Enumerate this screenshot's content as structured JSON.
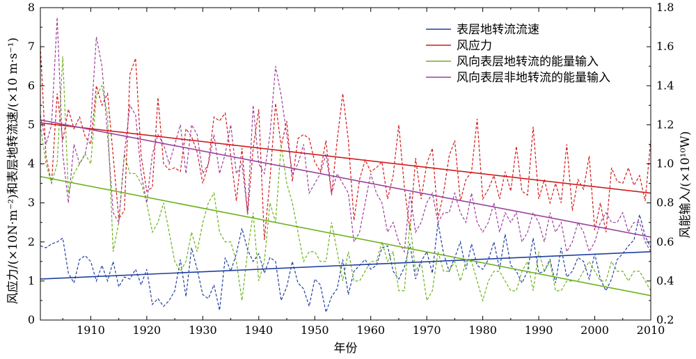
{
  "chart_data": {
    "type": "line",
    "xlabel": "年份",
    "ylabel_left": "风应力/(×10N·m⁻²)和表层地转流速/(×10 m·s⁻¹)",
    "ylabel_right": "风能输入/(×10¹⁰W)",
    "xlim": [
      1901,
      2010
    ],
    "ylim_left": [
      0,
      8
    ],
    "ylim_right": [
      0.2,
      1.8
    ],
    "xticks": [
      "1910",
      "1920",
      "1930",
      "1940",
      "1950",
      "1960",
      "1970",
      "1980",
      "1990",
      "2000",
      "2010"
    ],
    "yticks_left": [
      "0",
      "1",
      "2",
      "3",
      "4",
      "5",
      "6",
      "7",
      "8"
    ],
    "yticks_right": [
      "0.2",
      "0.4",
      "0.6",
      "0.8",
      "1.0",
      "1.2",
      "1.4",
      "1.6",
      "1.8"
    ],
    "grid": false,
    "legend_position": "top-right",
    "series": [
      {
        "name": "表层地转流流速",
        "color": "#1f3f9e",
        "axis": "left",
        "x_start": 1901,
        "values": [
          1.9,
          1.85,
          1.95,
          2.0,
          2.1,
          1.2,
          0.95,
          1.55,
          1.65,
          1.5,
          1.0,
          1.4,
          1.0,
          1.5,
          0.85,
          1.1,
          1.05,
          1.3,
          0.9,
          1.3,
          0.4,
          0.55,
          0.35,
          0.5,
          0.75,
          1.55,
          0.6,
          1.85,
          1.3,
          0.65,
          0.55,
          0.9,
          0.25,
          1.6,
          1.25,
          1.7,
          2.35,
          1.8,
          1.5,
          1.7,
          1.2,
          1.6,
          1.5,
          0.5,
          0.85,
          1.5,
          0.95,
          0.8,
          0.35,
          1.05,
          0.9,
          0.2,
          0.6,
          0.8,
          1.55,
          0.65,
          1.25,
          1.4,
          1.55,
          1.3,
          1.4,
          1.85,
          1.9,
          1.25,
          1.05,
          1.35,
          1.95,
          1.05,
          1.5,
          1.75,
          1.2,
          2.5,
          1.7,
          1.25,
          1.6,
          2.0,
          1.3,
          1.95,
          1.4,
          1.3,
          1.55,
          2.0,
          1.3,
          2.2,
          1.4,
          1.25,
          0.95,
          1.25,
          2.1,
          1.2,
          1.25,
          1.55,
          0.95,
          1.85,
          1.1,
          1.25,
          1.6,
          1.5,
          1.05,
          1.7,
          1.05,
          0.75,
          1.05,
          1.55,
          1.7,
          1.9,
          2.05,
          2.7,
          2.15,
          1.85
        ],
        "trend": [
          1.05,
          1.75
        ]
      },
      {
        "name": "风应力",
        "color": "#d11a1a",
        "axis": "left",
        "x_start": 1901,
        "values": [
          7.0,
          4.2,
          3.5,
          5.8,
          4.6,
          5.4,
          4.9,
          5.2,
          4.7,
          4.5,
          6.0,
          5.5,
          5.8,
          4.2,
          2.6,
          2.8,
          6.3,
          6.7,
          4.2,
          3.3,
          3.4,
          5.7,
          4.0,
          3.85,
          3.9,
          3.8,
          4.9,
          4.7,
          4.3,
          3.5,
          4.0,
          5.2,
          5.1,
          5.3,
          4.2,
          3.05,
          4.4,
          2.7,
          4.4,
          5.4,
          2.05,
          3.6,
          5.55,
          4.45,
          5.1,
          3.55,
          4.65,
          4.75,
          4.65,
          4.05,
          3.8,
          4.6,
          3.2,
          4.6,
          5.8,
          4.6,
          2.55,
          3.6,
          4.1,
          3.8,
          3.9,
          4.05,
          3.1,
          3.7,
          5.0,
          3.4,
          2.3,
          4.15,
          3.1,
          4.0,
          4.4,
          2.6,
          3.25,
          4.2,
          4.6,
          3.05,
          3.6,
          3.8,
          5.15,
          3.1,
          3.35,
          3.7,
          3.1,
          3.8,
          3.3,
          4.45,
          3.3,
          3.2,
          4.95,
          3.1,
          3.6,
          3.0,
          3.5,
          3.0,
          4.5,
          2.8,
          3.6,
          3.35,
          4.2,
          2.3,
          3.0,
          2.25,
          3.9,
          3.55,
          3.5,
          3.9,
          3.45,
          3.7,
          3.05,
          4.6
        ],
        "trend": [
          5.05,
          3.25
        ]
      },
      {
        "name": "风向表层地转流的能量输入",
        "color": "#6bb21c",
        "axis": "right",
        "x_start": 1901,
        "values": [
          1.2,
          1.0,
          0.9,
          1.0,
          1.55,
          0.85,
          0.95,
          1.0,
          1.05,
          1.0,
          1.35,
          1.4,
          1.25,
          0.55,
          0.7,
          1.05,
          0.95,
          0.95,
          0.9,
          0.8,
          0.65,
          0.7,
          0.8,
          0.65,
          0.5,
          0.45,
          0.5,
          0.65,
          0.55,
          0.7,
          0.8,
          0.85,
          0.65,
          0.6,
          0.6,
          0.5,
          0.3,
          0.55,
          0.75,
          0.4,
          0.5,
          0.8,
          0.7,
          1.1,
          0.9,
          0.8,
          0.65,
          0.5,
          0.55,
          0.55,
          0.5,
          0.5,
          0.7,
          0.55,
          0.4,
          0.55,
          0.4,
          0.4,
          0.45,
          0.5,
          0.5,
          0.6,
          0.5,
          0.55,
          0.35,
          0.35,
          0.7,
          0.45,
          0.5,
          0.3,
          0.35,
          0.55,
          0.45,
          0.45,
          0.5,
          0.4,
          0.5,
          0.5,
          0.4,
          0.3,
          0.4,
          0.45,
          0.45,
          0.4,
          0.35,
          0.35,
          0.45,
          0.5,
          0.35,
          0.55,
          0.45,
          0.5,
          0.35,
          0.35,
          0.4,
          0.4,
          0.4,
          0.45,
          0.5,
          0.45,
          0.4,
          0.4,
          0.5,
          0.45,
          0.45,
          0.4,
          0.45,
          0.45,
          0.4,
          0.35
        ],
        "trend": [
          0.935,
          0.325
        ]
      },
      {
        "name": "风向表层非地转流的能量输入",
        "color": "#9b3f9b",
        "axis": "right",
        "x_start": 1901,
        "values": [
          1.25,
          1.1,
          1.2,
          1.75,
          1.05,
          0.8,
          1.1,
          1.0,
          1.05,
          1.2,
          1.65,
          1.5,
          1.15,
          0.75,
          0.7,
          1.05,
          1.3,
          1.25,
          0.95,
          0.8,
          1.05,
          1.15,
          1.1,
          1.0,
          1.1,
          1.2,
          0.95,
          1.2,
          1.15,
          0.95,
          1.0,
          1.15,
          0.95,
          1.05,
          1.2,
          0.95,
          1.0,
          0.75,
          1.3,
          1.0,
          0.95,
          1.15,
          1.5,
          1.35,
          1.15,
          0.95,
          1.0,
          1.1,
          0.85,
          0.9,
          0.95,
          1.05,
          0.85,
          0.95,
          0.9,
          0.85,
          0.6,
          0.65,
          0.8,
          0.95,
          0.85,
          0.8,
          0.65,
          0.7,
          0.6,
          0.55,
          0.85,
          0.65,
          0.7,
          0.8,
          0.85,
          0.7,
          0.75,
          0.75,
          0.85,
          0.75,
          0.7,
          0.85,
          0.7,
          0.65,
          0.7,
          0.8,
          0.65,
          0.75,
          0.7,
          0.75,
          0.6,
          0.65,
          0.75,
          0.7,
          0.6,
          0.75,
          0.65,
          0.7,
          0.55,
          0.6,
          0.7,
          0.65,
          0.55,
          0.6,
          0.7,
          0.75,
          0.7,
          0.7,
          0.75,
          0.65,
          0.7,
          0.7,
          0.6,
          0.55
        ],
        "trend": [
          1.225,
          0.625
        ]
      }
    ]
  }
}
